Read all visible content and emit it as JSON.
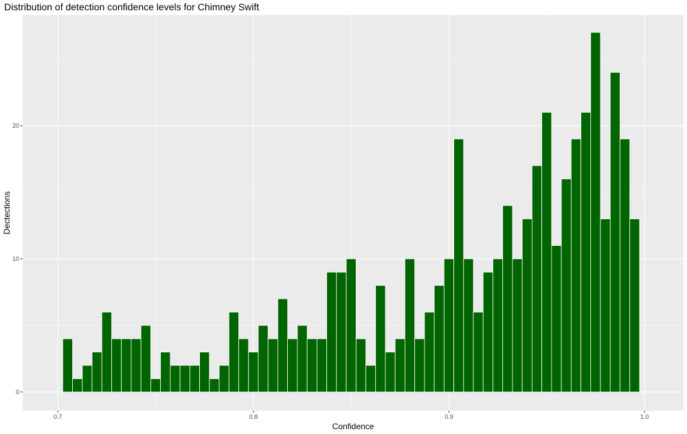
{
  "chart_data": {
    "type": "bar",
    "title": "Distribution of detection confidence levels for Chimney Swift",
    "xlabel": "Confidence",
    "ylabel": "Dectections",
    "xlim": [
      0.682,
      1.02
    ],
    "ylim": [
      -1.4,
      28.3
    ],
    "x_ticks": [
      0.7,
      0.8,
      0.9,
      1.0
    ],
    "x_tick_labels": [
      "0.7",
      "0.8",
      "0.9",
      "1.0"
    ],
    "y_ticks": [
      0,
      10,
      20
    ],
    "y_tick_labels": [
      "0",
      "10",
      "20"
    ],
    "grid": true,
    "bar_color": "#006400",
    "panel_color": "#ebebeb",
    "bin_width": 0.005,
    "bin_start": 0.7025,
    "values": [
      4,
      1,
      2,
      3,
      6,
      4,
      4,
      4,
      5,
      1,
      3,
      2,
      2,
      2,
      3,
      1,
      2,
      6,
      4,
      3,
      5,
      4,
      7,
      4,
      5,
      4,
      4,
      9,
      9,
      10,
      4,
      2,
      8,
      3,
      4,
      10,
      4,
      6,
      8,
      10,
      19,
      10,
      6,
      9,
      10,
      14,
      10,
      13,
      17,
      21,
      11,
      16,
      19,
      21,
      27,
      13,
      24,
      19,
      13
    ]
  }
}
